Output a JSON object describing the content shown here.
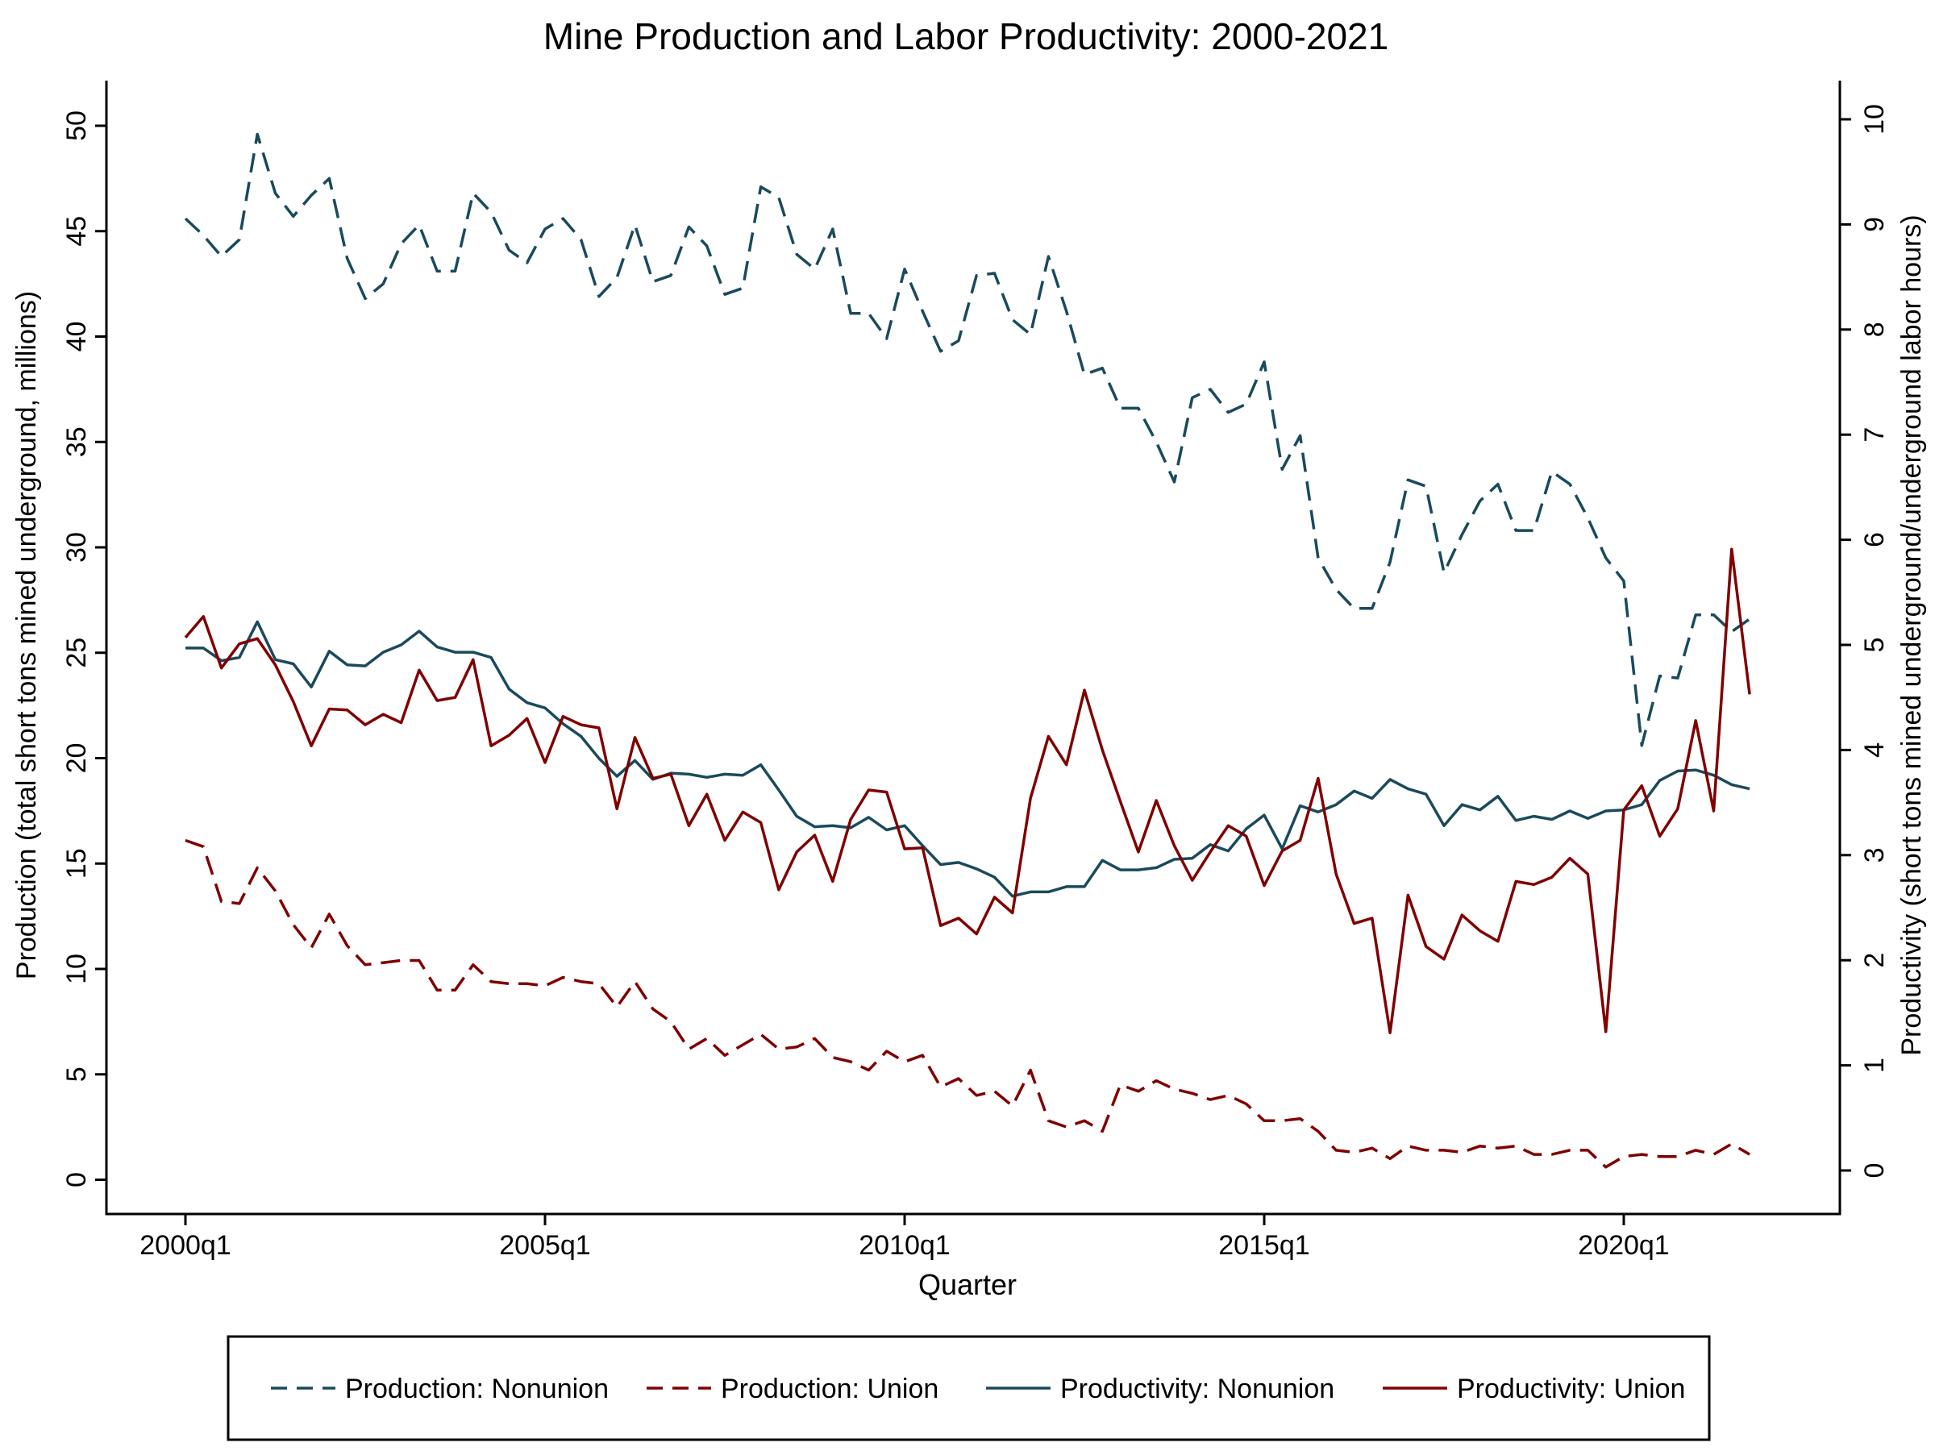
{
  "chart_data": {
    "type": "line",
    "title": "Mine Production and Labor Productivity: 2000-2021",
    "xlabel": "Quarter",
    "ylabel_left": "Production (total short tons mined underground, millions)",
    "ylabel_right": "Productivity (short tons mined underground/underground labor hours)",
    "x_range": [
      0,
      87
    ],
    "x_tick_labels": [
      "2000q1",
      "2005q1",
      "2010q1",
      "2015q1",
      "2020q1"
    ],
    "x_tick_positions": [
      0,
      20,
      40,
      60,
      80
    ],
    "ylim_left": [
      0,
      50
    ],
    "yticks_left": [
      "0",
      "5",
      "10",
      "15",
      "20",
      "25",
      "30",
      "35",
      "40",
      "45",
      "50"
    ],
    "ylim_right": [
      0,
      10
    ],
    "yticks_right": [
      "0",
      "1",
      "2",
      "3",
      "4",
      "5",
      "6",
      "7",
      "8",
      "9",
      "10"
    ],
    "grid": false,
    "legend_position": "bottom",
    "series": [
      {
        "name": "Production: Nonunion",
        "axis": "left",
        "style": "dashed",
        "color": "#1a4a5c",
        "values": [
          45.6,
          44.8,
          43.8,
          44.6,
          49.6,
          46.8,
          45.7,
          46.7,
          47.5,
          43.7,
          41.8,
          42.5,
          44.4,
          45.3,
          43.1,
          43.1,
          46.8,
          45.9,
          44.1,
          43.5,
          45.1,
          45.6,
          44.6,
          41.9,
          42.8,
          45.3,
          42.6,
          42.9,
          45.2,
          44.3,
          42.0,
          42.3,
          47.1,
          46.6,
          43.9,
          43.2,
          45.1,
          41.1,
          41.1,
          39.9,
          43.2,
          41.2,
          39.3,
          39.8,
          42.9,
          43.0,
          40.8,
          40.1,
          43.8,
          41.2,
          38.2,
          38.5,
          36.6,
          36.6,
          35.0,
          33.1,
          37.1,
          37.5,
          36.4,
          36.8,
          38.8,
          33.7,
          35.3,
          29.5,
          28.0,
          27.1,
          27.1,
          29.3,
          33.2,
          32.9,
          28.8,
          30.6,
          32.2,
          33.0,
          30.8,
          30.8,
          33.6,
          33.0,
          31.4,
          29.5,
          28.4,
          20.6,
          23.9,
          23.8,
          26.8,
          26.8,
          26.0,
          26.6
        ]
      },
      {
        "name": "Production: Union",
        "axis": "left",
        "style": "dashed",
        "color": "#800000",
        "values": [
          16.1,
          15.8,
          13.2,
          13.1,
          14.8,
          13.7,
          12.1,
          11.0,
          12.6,
          11.1,
          10.2,
          10.3,
          10.4,
          10.4,
          9.0,
          9.0,
          10.2,
          9.4,
          9.3,
          9.3,
          9.2,
          9.6,
          9.4,
          9.3,
          8.2,
          9.4,
          8.1,
          7.5,
          6.2,
          6.7,
          5.9,
          6.4,
          6.9,
          6.2,
          6.3,
          6.7,
          5.8,
          5.6,
          5.2,
          6.1,
          5.6,
          5.9,
          4.4,
          4.8,
          4.0,
          4.2,
          3.5,
          5.2,
          2.8,
          2.5,
          2.8,
          2.3,
          4.5,
          4.2,
          4.7,
          4.3,
          4.1,
          3.8,
          4.0,
          3.6,
          2.8,
          2.8,
          2.9,
          2.3,
          1.4,
          1.3,
          1.5,
          1.0,
          1.6,
          1.4,
          1.4,
          1.3,
          1.6,
          1.5,
          1.6,
          1.2,
          1.2,
          1.4,
          1.4,
          0.6,
          1.1,
          1.2,
          1.1,
          1.1,
          1.4,
          1.2,
          1.7,
          1.2
        ]
      },
      {
        "name": "Productivity: Nonunion",
        "axis": "right",
        "style": "solid",
        "color": "#1a4a5c",
        "values": [
          4.97,
          4.97,
          4.85,
          4.88,
          5.22,
          4.86,
          4.82,
          4.6,
          4.94,
          4.81,
          4.8,
          4.93,
          5.0,
          5.13,
          4.98,
          4.93,
          4.93,
          4.88,
          4.58,
          4.45,
          4.4,
          4.25,
          4.13,
          3.92,
          3.75,
          3.9,
          3.72,
          3.78,
          3.77,
          3.74,
          3.77,
          3.76,
          3.86,
          3.62,
          3.37,
          3.27,
          3.28,
          3.26,
          3.36,
          3.24,
          3.28,
          3.09,
          2.91,
          2.93,
          2.87,
          2.79,
          2.61,
          2.65,
          2.65,
          2.7,
          2.7,
          2.95,
          2.86,
          2.86,
          2.88,
          2.96,
          2.97,
          3.1,
          3.04,
          3.25,
          3.38,
          3.06,
          3.47,
          3.41,
          3.48,
          3.61,
          3.54,
          3.72,
          3.63,
          3.58,
          3.28,
          3.48,
          3.43,
          3.56,
          3.33,
          3.37,
          3.34,
          3.42,
          3.35,
          3.42,
          3.43,
          3.48,
          3.71,
          3.8,
          3.81,
          3.76,
          3.67,
          3.63
        ]
      },
      {
        "name": "Productivity: Union",
        "axis": "right",
        "style": "solid",
        "color": "#800000",
        "values": [
          5.07,
          5.27,
          4.78,
          5.01,
          5.06,
          4.81,
          4.46,
          4.04,
          4.39,
          4.38,
          4.24,
          4.34,
          4.26,
          4.76,
          4.47,
          4.5,
          4.86,
          4.04,
          4.14,
          4.3,
          3.88,
          4.32,
          4.24,
          4.21,
          3.44,
          4.12,
          3.73,
          3.77,
          3.28,
          3.58,
          3.14,
          3.41,
          3.31,
          2.67,
          3.03,
          3.19,
          2.75,
          3.34,
          3.62,
          3.6,
          3.06,
          3.07,
          2.33,
          2.4,
          2.25,
          2.6,
          2.45,
          3.54,
          4.13,
          3.86,
          4.57,
          4.0,
          3.51,
          3.03,
          3.52,
          3.09,
          2.76,
          3.03,
          3.28,
          3.18,
          2.71,
          3.04,
          3.14,
          3.73,
          2.82,
          2.35,
          2.4,
          1.31,
          2.62,
          2.13,
          2.01,
          2.43,
          2.28,
          2.18,
          2.75,
          2.72,
          2.79,
          2.97,
          2.82,
          1.32,
          3.43,
          3.66,
          3.18,
          3.44,
          4.28,
          3.42,
          5.91,
          4.53
        ]
      }
    ]
  }
}
